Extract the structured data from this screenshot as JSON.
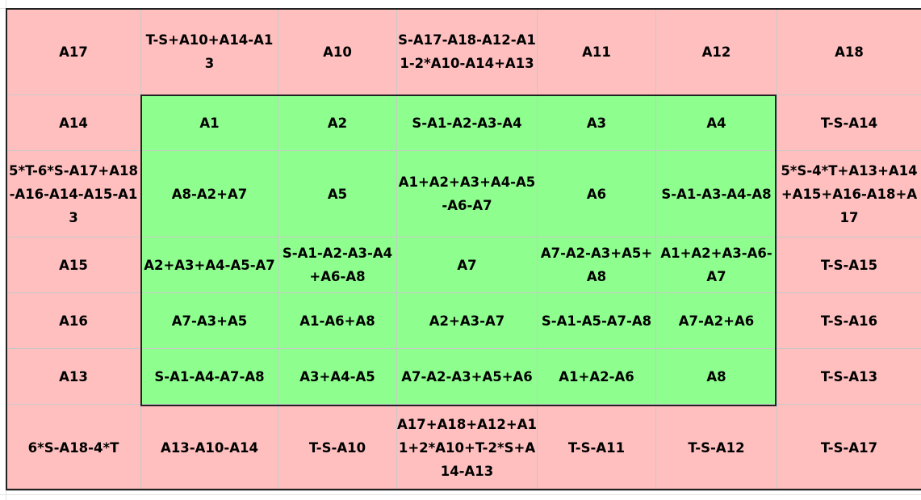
{
  "grid": {
    "rows": [
      [
        "A17",
        "T-S+A10+A14-A13",
        "A10",
        "S-A17-A18-A12-A11-2*A10-A14+A13",
        "A11",
        "A12",
        "A18"
      ],
      [
        "A14",
        "A1",
        "A2",
        "S-A1-A2-A3-A4",
        "A3",
        "A4",
        "T-S-A14"
      ],
      [
        "5*T-6*S-A17+A18-A16-A14-A15-A13",
        "A8-A2+A7",
        "A5",
        "A1+A2+A3+A4-A5-A6-A7",
        "A6",
        "S-A1-A3-A4-A8",
        "5*S-4*T+A13+A14+A15+A16-A18+A17"
      ],
      [
        "A15",
        "A2+A3+A4-A5-A7",
        "S-A1-A2-A3-A4+A6-A8",
        "A7",
        "A7-A2-A3+A5+A8",
        "A1+A2+A3-A6-A7",
        "T-S-A15"
      ],
      [
        "A16",
        "A7-A3+A5",
        "A1-A6+A8",
        "A2+A3-A7",
        "S-A1-A5-A7-A8",
        "A7-A2+A6",
        "T-S-A16"
      ],
      [
        "A13",
        "S-A1-A4-A7-A8",
        "A3+A4-A5",
        "A7-A2-A3+A5+A6",
        "A1+A2-A6",
        "A8",
        "T-S-A13"
      ],
      [
        "6*S-A18-4*T",
        "A13-A10-A14",
        "T-S-A10",
        "A17+A18+A12+A11+2*A10+T-2*S+A14-A13",
        "T-S-A11",
        "T-S-A12",
        "T-S-A17"
      ]
    ]
  },
  "colors": {
    "border_cell": "#ffbfbf",
    "inner_cell": "#8eff8e",
    "frame": "#222222"
  }
}
